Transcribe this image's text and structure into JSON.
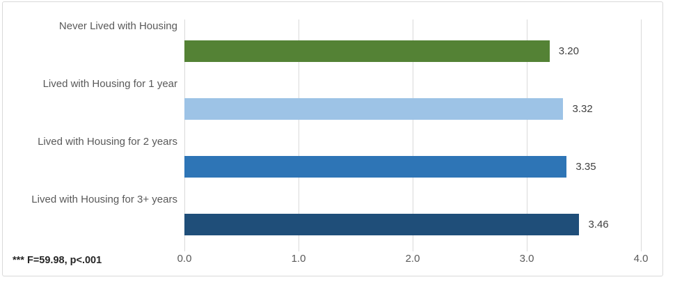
{
  "chart_data": {
    "type": "bar",
    "orientation": "horizontal",
    "title": "",
    "categories": [
      "Never Lived with Housing",
      "Lived with Housing for 1 year",
      "Lived with Housing for 2 years",
      "Lived with Housing for 3+ years"
    ],
    "values": [
      3.2,
      3.32,
      3.35,
      3.46
    ],
    "value_labels": [
      "3.20",
      "3.32",
      "3.35",
      "3.46"
    ],
    "bar_colors": [
      "#548235",
      "#9DC3E6",
      "#2E75B6",
      "#1F4E79"
    ],
    "x_tick_labels": [
      "0.0",
      "1.0",
      "2.0",
      "3.0",
      "4.0"
    ],
    "xlim": [
      0,
      4
    ],
    "grid": true,
    "legend": false,
    "footnote": "*** F=59.98, p<.001"
  },
  "colors": {
    "axis_text": "#595959",
    "category_text": "#595959",
    "value_text": "#404040",
    "gridline": "#d9d9d9",
    "frame_border": "#d9d9d9",
    "background": "#ffffff"
  }
}
